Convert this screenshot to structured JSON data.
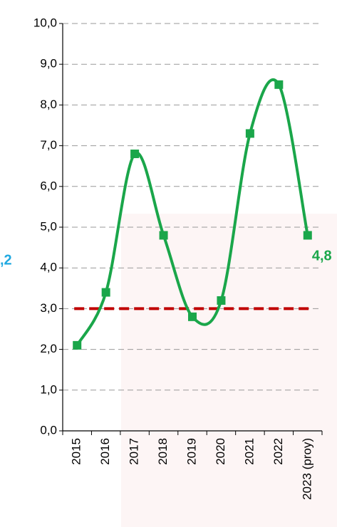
{
  "chart_data": {
    "type": "line",
    "categories": [
      "2015",
      "2016",
      "2017",
      "2018",
      "2019",
      "2020",
      "2021",
      "2022",
      "2023 (proy)"
    ],
    "series": [
      {
        "color": "#1aa64a",
        "values": [
          2.1,
          3.4,
          6.8,
          4.8,
          2.8,
          3.2,
          7.3,
          8.5,
          4.8
        ],
        "value_labels": [
          null,
          null,
          null,
          null,
          null,
          null,
          null,
          null,
          "4,8"
        ]
      }
    ],
    "reference_line": {
      "value": 3.0,
      "color": "#c00000"
    },
    "side_label": {
      "text": ",2",
      "color": "#1fa9e1"
    },
    "ylim": [
      0,
      10
    ],
    "yticks": [
      {
        "value": 0,
        "label": "0,0"
      },
      {
        "value": 1,
        "label": "1,0"
      },
      {
        "value": 2,
        "label": "2,0"
      },
      {
        "value": 3,
        "label": "3,0"
      },
      {
        "value": 4,
        "label": "4,0"
      },
      {
        "value": 5,
        "label": "5,0"
      },
      {
        "value": 6,
        "label": "6,0"
      },
      {
        "value": 7,
        "label": "7,0"
      },
      {
        "value": 8,
        "label": "8,0"
      },
      {
        "value": 9,
        "label": "9,0"
      },
      {
        "value": 10,
        "label": "10,0"
      }
    ],
    "grid": true
  }
}
